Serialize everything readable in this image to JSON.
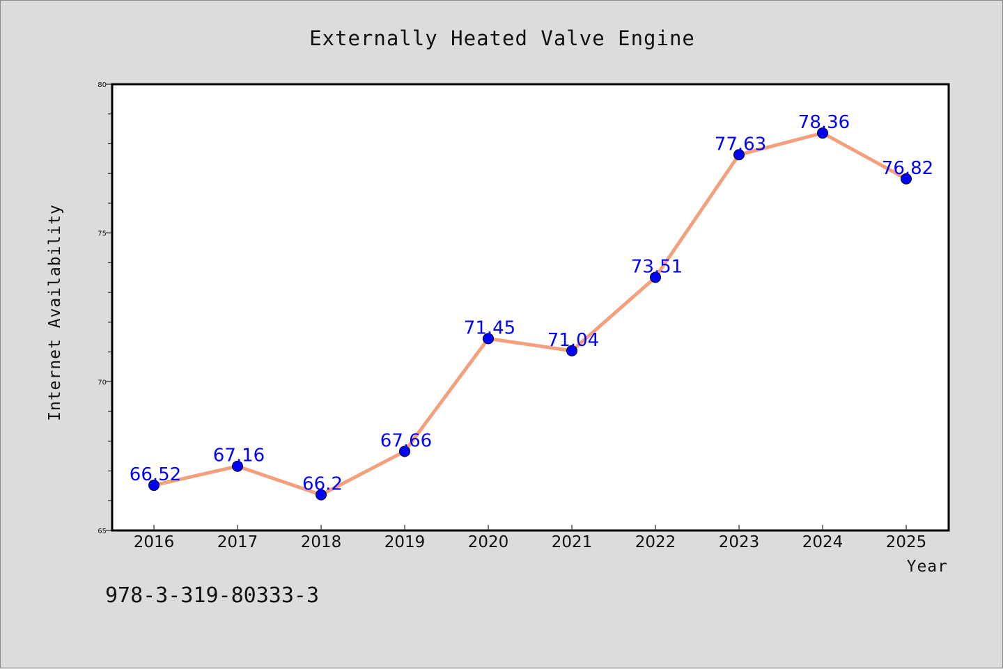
{
  "chart_data": {
    "type": "line",
    "title": "Externally Heated Valve Engine",
    "xlabel": "Year",
    "ylabel": "Internet Availability",
    "categories": [
      "2016",
      "2017",
      "2018",
      "2019",
      "2020",
      "2021",
      "2022",
      "2023",
      "2024",
      "2025"
    ],
    "series": [
      {
        "values": [
          66.52,
          67.16,
          66.2,
          67.66,
          71.45,
          71.04,
          73.51,
          77.63,
          78.36,
          76.82
        ],
        "line_color": "#f4a07f",
        "marker_color": "#0000ff"
      }
    ],
    "data_labels": [
      "66.52",
      "67.16",
      "66.2",
      "67.66",
      "71.45",
      "71.04",
      "73.51",
      "77.63",
      "78.36",
      "76.82"
    ],
    "ylim": [
      65,
      80
    ],
    "yticks": [
      "65",
      "70",
      "75",
      "80"
    ],
    "grid": false,
    "legend": "none",
    "label_color": "#0000ff"
  },
  "footnote": "978-3-319-80333-3"
}
